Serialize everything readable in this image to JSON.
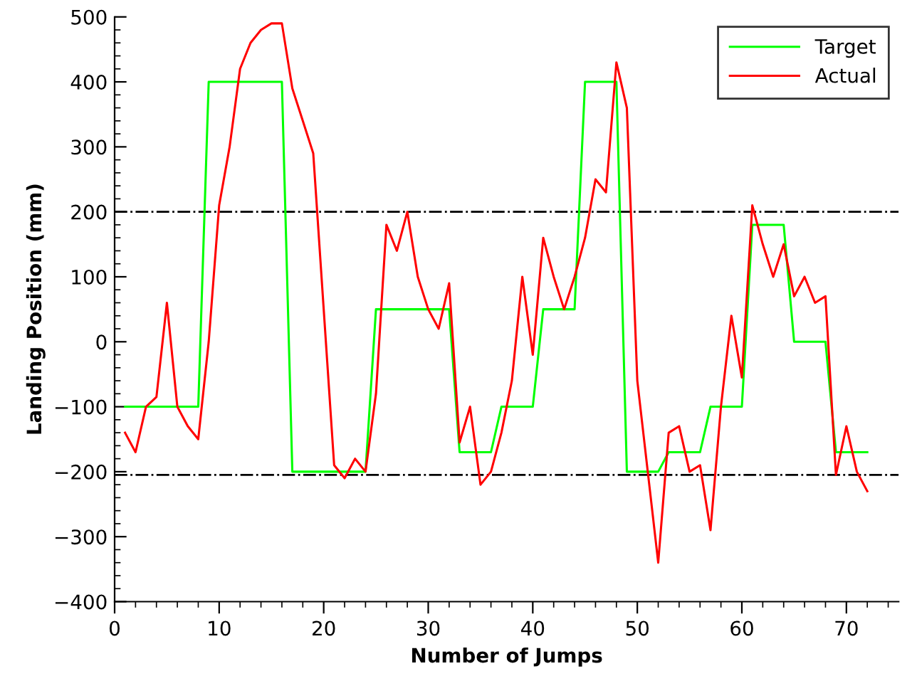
{
  "chart_data": {
    "type": "line",
    "xlabel": "Number of Jumps",
    "ylabel": "Landing Position (mm)",
    "x": [
      1,
      2,
      3,
      4,
      5,
      6,
      7,
      8,
      9,
      10,
      11,
      12,
      13,
      14,
      15,
      16,
      17,
      18,
      19,
      20,
      21,
      22,
      23,
      24,
      25,
      26,
      27,
      28,
      29,
      30,
      31,
      32,
      33,
      34,
      35,
      36,
      37,
      38,
      39,
      40,
      41,
      42,
      43,
      44,
      45,
      46,
      47,
      48,
      49,
      50,
      51,
      52,
      53,
      54,
      55,
      56,
      57,
      58,
      59,
      60,
      61,
      62,
      63,
      64,
      65,
      66,
      67,
      68,
      69,
      70,
      71,
      72
    ],
    "series": [
      {
        "name": "Target",
        "color": "#00ff00",
        "values": [
          -100,
          -100,
          -100,
          -100,
          -100,
          -100,
          -100,
          -100,
          400,
          400,
          400,
          400,
          400,
          400,
          400,
          400,
          -200,
          -200,
          -200,
          -200,
          -200,
          -200,
          -200,
          -200,
          50,
          50,
          50,
          50,
          50,
          50,
          50,
          50,
          -170,
          -170,
          -170,
          -170,
          -100,
          -100,
          -100,
          -100,
          50,
          50,
          50,
          50,
          400,
          400,
          400,
          400,
          -200,
          -200,
          -200,
          -200,
          -170,
          -170,
          -170,
          -170,
          -100,
          -100,
          -100,
          -100,
          180,
          180,
          180,
          180,
          0,
          0,
          0,
          0,
          -170,
          -170,
          -170,
          -170
        ]
      },
      {
        "name": "Actual",
        "color": "#ff0000",
        "values": [
          -140,
          -170,
          -100,
          -85,
          60,
          -100,
          -130,
          -150,
          0,
          210,
          300,
          420,
          460,
          480,
          490,
          490,
          390,
          340,
          290,
          50,
          -190,
          -210,
          -180,
          -200,
          -80,
          180,
          140,
          200,
          100,
          50,
          20,
          90,
          -155,
          -100,
          -220,
          -200,
          -140,
          -60,
          100,
          -20,
          160,
          100,
          50,
          100,
          160,
          250,
          230,
          430,
          360,
          -60,
          -200,
          -340,
          -140,
          -130,
          -200,
          -190,
          -290,
          -100,
          40,
          -55,
          210,
          150,
          100,
          150,
          70,
          100,
          60,
          70,
          -205,
          -130,
          -200,
          -230
        ]
      }
    ],
    "xlim": [
      0,
      75
    ],
    "xticks": [
      0,
      10,
      20,
      30,
      40,
      50,
      60,
      70
    ],
    "ylim": [
      -400,
      500
    ],
    "yticks": [
      {
        "value": -400,
        "label": "−400"
      },
      {
        "value": -300,
        "label": "−300"
      },
      {
        "value": -200,
        "label": "−200"
      },
      {
        "value": -100,
        "label": "−100"
      },
      0,
      100,
      200,
      300,
      400,
      500
    ],
    "ref_lines": [
      {
        "axis": "y",
        "value": 200,
        "color": "#000000",
        "line_style": "dashdot"
      },
      {
        "axis": "y",
        "value": -205,
        "color": "#000000",
        "line_style": "dashdot"
      }
    ],
    "legend": "top right",
    "grid": false,
    "marker": "none",
    "line_style": "solid"
  }
}
